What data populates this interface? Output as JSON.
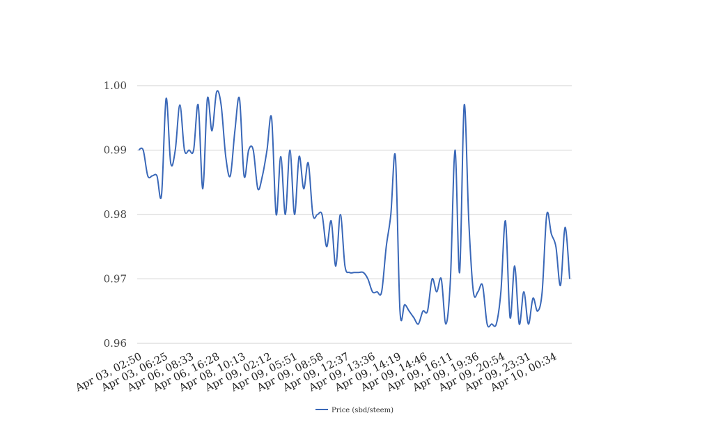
{
  "chart_data": {
    "type": "line",
    "title": "",
    "xlabel": "",
    "ylabel": "",
    "ylim": [
      0.96,
      1.0
    ],
    "yticks": [
      "0.96",
      "0.97",
      "0.98",
      "0.99",
      "1.00"
    ],
    "xtick_labels": [
      "Apr 03, 02:50",
      "Apr 03, 06:25",
      "Apr 06, 08:33",
      "Apr 06, 16:28",
      "Apr 08, 10:13",
      "Apr 09, 02:12",
      "Apr 09, 05:51",
      "Apr 09, 08:58",
      "Apr 09, 12:37",
      "Apr 09, 13:36",
      "Apr 09, 14:19",
      "Apr 09, 14:46",
      "Apr 09, 16:11",
      "Apr 09, 19:36",
      "Apr 09, 20:54",
      "Apr 09, 23:31",
      "Apr 10, 00:34"
    ],
    "grid": true,
    "legend_position": "bottom-center",
    "series": [
      {
        "name": "Price (sbd/steem)",
        "color": "#3a68b8",
        "values": [
          0.99,
          0.99,
          0.986,
          0.986,
          0.986,
          0.983,
          0.998,
          0.988,
          0.99,
          0.997,
          0.99,
          0.99,
          0.99,
          0.997,
          0.984,
          0.998,
          0.993,
          0.999,
          0.997,
          0.989,
          0.986,
          0.993,
          0.998,
          0.986,
          0.99,
          0.99,
          0.984,
          0.986,
          0.99,
          0.995,
          0.98,
          0.989,
          0.98,
          0.99,
          0.98,
          0.989,
          0.984,
          0.988,
          0.98,
          0.98,
          0.98,
          0.975,
          0.979,
          0.972,
          0.98,
          0.972,
          0.971,
          0.971,
          0.971,
          0.971,
          0.97,
          0.968,
          0.968,
          0.968,
          0.975,
          0.98,
          0.989,
          0.965,
          0.966,
          0.965,
          0.964,
          0.963,
          0.965,
          0.965,
          0.97,
          0.968,
          0.97,
          0.963,
          0.97,
          0.99,
          0.971,
          0.997,
          0.979,
          0.968,
          0.968,
          0.969,
          0.963,
          0.963,
          0.963,
          0.968,
          0.979,
          0.964,
          0.972,
          0.963,
          0.968,
          0.963,
          0.967,
          0.965,
          0.968,
          0.98,
          0.977,
          0.975,
          0.969,
          0.978,
          0.97
        ]
      }
    ]
  }
}
